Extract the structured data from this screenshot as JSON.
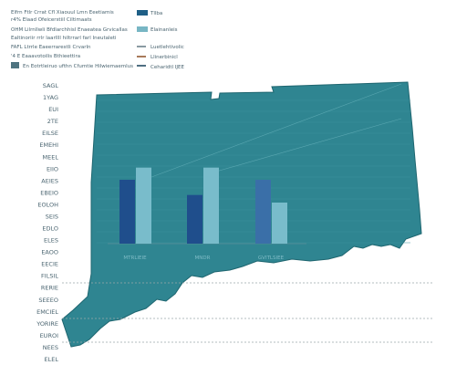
{
  "notes": {
    "lines": [
      "Elfrn Ftlr Crrat Cfl Xiaouul Lmn Eeetiamis",
      "r4% Elaad Ofeicerstiil Ciltimaats",
      "OHM Lilrnllwli Bfdlarchhisl Enaeatea Grvicallas",
      "Ealtinoriir rrlr laarllll hiltrrarl farl Ineutaleti",
      "FAFL Ltrrle Eaeerrarestli Crvarln",
      "'4 E Eaaavotoilis Bthieettira",
      "En Eotrtleiruo ufthn Cfumtie Hilwiemaemlus"
    ]
  },
  "legend": {
    "items": [
      {
        "label": "Tllba",
        "color": "#1f5f86"
      },
      {
        "label": "Elainanleis",
        "color": "#78b6c4"
      },
      {
        "label": "Luetlehtivolic",
        "color": "#8a9aa2"
      },
      {
        "label": "Llinerbinicl",
        "color": "#a87a5a"
      },
      {
        "label": "Ceharidtl IJEE",
        "color": "#4f6f82"
      }
    ]
  },
  "map": {
    "fill": "#2f8591",
    "stroke": "#1f6670"
  },
  "chart_data": {
    "type": "bar",
    "categories": [
      "MTRLIEIE",
      "MNDR",
      "GVITLSIEE"
    ],
    "series": [
      {
        "values": [
          42,
          32,
          42
        ],
        "color": "#1f4e8c"
      },
      {
        "values": [
          50,
          50,
          27
        ],
        "color": "#79bccb"
      }
    ],
    "ylim": [
      0,
      60
    ],
    "y_axis_labels": [
      "SAGL",
      "1YAG",
      "EUI",
      "2TE",
      "EILSE",
      "EMEHI",
      "MEEL",
      "EIIO",
      "AEIES",
      "EBEIO",
      "EOLOH",
      "SEIS",
      "EDLO",
      "ELES",
      "EAOO",
      "EECIE",
      "FILSIL",
      "RERIE",
      "SEEEO",
      "EMCIEL",
      "YORIRE",
      "EUROI",
      "NEES",
      "ELEL"
    ],
    "grid": true
  }
}
